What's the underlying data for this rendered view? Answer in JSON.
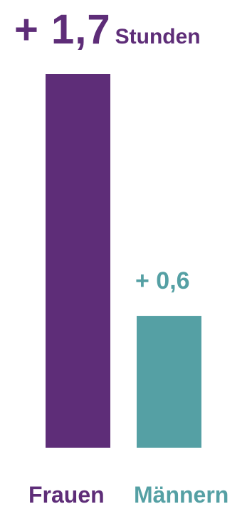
{
  "chart_data": {
    "type": "bar",
    "categories": [
      "Frauen",
      "Männern"
    ],
    "values": [
      1.7,
      0.6
    ],
    "value_labels": [
      "+ 1,7",
      "+ 0,6"
    ],
    "unit": "Stunden",
    "ylim": [
      0,
      1.7
    ],
    "colors": [
      "#5e2d78",
      "#55a0a4"
    ],
    "grid": false,
    "legend": "none"
  }
}
